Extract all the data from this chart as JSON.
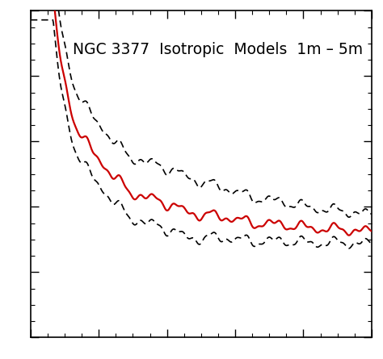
{
  "title": "NGC 3377  Isotropic  Models  1m – 5m",
  "title_fontsize": 13.5,
  "background_color": "#ffffff",
  "line_color_solid": "#cc0000",
  "line_color_dashed": "#000000",
  "xlim": [
    0,
    1
  ],
  "ylim": [
    0,
    1
  ],
  "tick_color": "#000000",
  "spine_color": "#000000",
  "figsize": [
    4.74,
    4.45
  ],
  "dpi": 100
}
